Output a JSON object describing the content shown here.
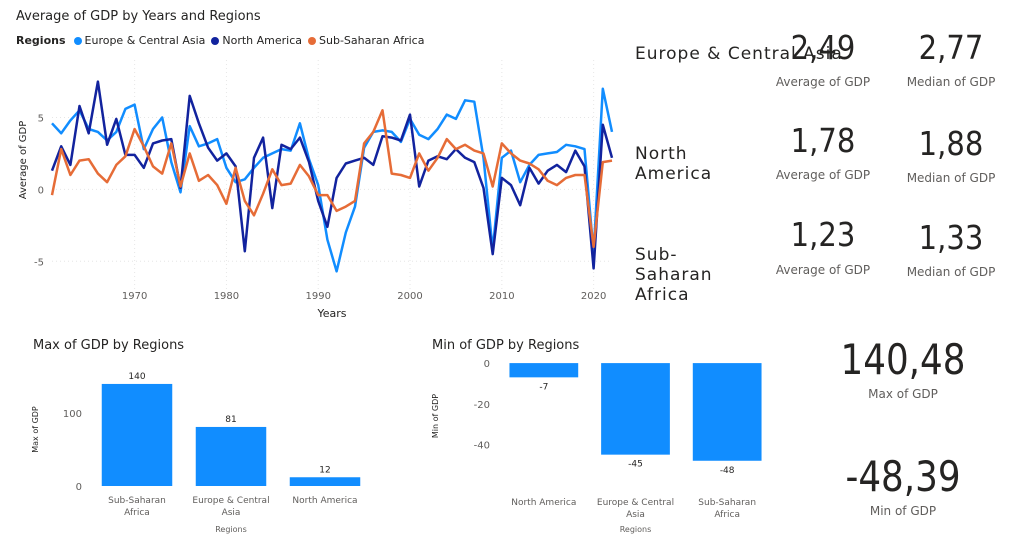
{
  "line_chart": {
    "title": "Average of GDP by Years and Regions",
    "legend_title": "Regions",
    "xlabel": "Years",
    "ylabel": "Average of GDP"
  },
  "kpis": [
    {
      "region": "Europe & Central Asia",
      "average": "2,49",
      "median": "2,77",
      "average_label": "Average of GDP",
      "median_label": "Median of GDP"
    },
    {
      "region": "North America",
      "average": "1,78",
      "median": "1,88",
      "average_label": "Average of GDP",
      "median_label": "Median of GDP"
    },
    {
      "region": "Sub-Saharan Africa",
      "average": "1,23",
      "median": "1,33",
      "average_label": "Average of GDP",
      "median_label": "Median of GDP"
    }
  ],
  "max_chart": {
    "title": "Max of GDP by Regions",
    "xlabel": "Regions",
    "ylabel": "Max of GDP"
  },
  "min_chart": {
    "title": "Min of GDP by Regions",
    "xlabel": "Regions",
    "ylabel": "Min of GDP"
  },
  "max_card": {
    "value": "140,48",
    "label": "Max of GDP"
  },
  "min_card": {
    "value": "-48,39",
    "label": "Min of GDP"
  },
  "chart_data": [
    {
      "type": "line",
      "title": "Average of GDP by Years and Regions",
      "xlabel": "Years",
      "ylabel": "Average of GDP",
      "xlim": [
        1961,
        2022
      ],
      "ylim": [
        -7,
        9
      ],
      "x_ticks": [
        1970,
        1980,
        1990,
        2000,
        2010,
        2020
      ],
      "y_ticks": [
        -5,
        0,
        5
      ],
      "grid": true,
      "legend_position": "top-left",
      "x": [
        1961,
        1962,
        1963,
        1964,
        1965,
        1966,
        1967,
        1968,
        1969,
        1970,
        1971,
        1972,
        1973,
        1974,
        1975,
        1976,
        1977,
        1978,
        1979,
        1980,
        1981,
        1982,
        1983,
        1984,
        1985,
        1986,
        1987,
        1988,
        1989,
        1990,
        1991,
        1992,
        1993,
        1994,
        1995,
        1996,
        1997,
        1998,
        1999,
        2000,
        2001,
        2002,
        2003,
        2004,
        2005,
        2006,
        2007,
        2008,
        2009,
        2010,
        2011,
        2012,
        2013,
        2014,
        2015,
        2016,
        2017,
        2018,
        2019,
        2020,
        2021,
        2022
      ],
      "series": [
        {
          "name": "Europe & Central Asia",
          "color": "#118DFF",
          "values": [
            4.6,
            3.9,
            4.8,
            5.5,
            4.2,
            4.0,
            3.4,
            4.0,
            5.6,
            5.9,
            2.8,
            4.2,
            5.0,
            1.9,
            -0.2,
            4.4,
            3.0,
            3.2,
            3.5,
            1.5,
            0.5,
            0.7,
            1.5,
            2.2,
            2.5,
            2.8,
            2.7,
            4.6,
            2.1,
            0.3,
            -3.5,
            -5.7,
            -3.0,
            -1.2,
            2.9,
            4.0,
            4.1,
            4.0,
            3.3,
            4.9,
            3.8,
            3.5,
            4.2,
            5.2,
            4.9,
            6.2,
            6.1,
            2.2,
            -4.2,
            2.2,
            2.7,
            0.5,
            1.7,
            2.4,
            2.5,
            2.6,
            3.1,
            3.0,
            2.8,
            -4.4,
            7.0,
            4.0
          ]
        },
        {
          "name": "North America",
          "color": "#12239E",
          "values": [
            1.3,
            3.0,
            1.7,
            5.8,
            3.9,
            7.5,
            3.1,
            4.9,
            2.4,
            2.4,
            1.5,
            3.2,
            3.4,
            3.5,
            0.1,
            6.5,
            4.6,
            2.9,
            2.0,
            2.5,
            1.6,
            -4.3,
            2.2,
            3.6,
            -1.3,
            3.1,
            2.8,
            3.6,
            1.9,
            -0.8,
            -2.6,
            0.8,
            1.8,
            2.0,
            2.2,
            1.7,
            3.7,
            3.6,
            3.4,
            5.2,
            0.2,
            2.0,
            2.3,
            2.1,
            2.8,
            2.2,
            1.9,
            0.1,
            -4.5,
            0.8,
            0.3,
            -1.1,
            1.5,
            0.4,
            1.3,
            1.7,
            1.2,
            2.7,
            1.6,
            -5.5,
            4.5,
            2.2
          ]
        },
        {
          "name": "Sub-Saharan Africa",
          "color": "#E66C37",
          "values": [
            -0.4,
            2.8,
            1.0,
            2.0,
            2.1,
            1.1,
            0.5,
            1.7,
            2.3,
            4.2,
            3.0,
            1.6,
            1.1,
            3.2,
            0.2,
            2.5,
            0.6,
            1.0,
            0.3,
            -1.0,
            1.5,
            -0.8,
            -1.8,
            -0.3,
            1.4,
            0.3,
            0.4,
            1.7,
            0.9,
            -0.4,
            -0.4,
            -1.5,
            -1.2,
            -0.8,
            3.2,
            4.0,
            5.5,
            1.1,
            1.0,
            0.8,
            2.5,
            1.3,
            2.2,
            3.5,
            2.8,
            3.1,
            2.7,
            2.5,
            0.2,
            3.2,
            2.5,
            2.0,
            1.8,
            1.4,
            0.6,
            0.3,
            0.8,
            1.0,
            1.0,
            -4.0,
            1.9,
            2.0
          ]
        }
      ]
    },
    {
      "type": "bar",
      "title": "Max of GDP by Regions",
      "xlabel": "Regions",
      "ylabel": "Max of GDP",
      "categories": [
        "Sub-Saharan Africa",
        "Europe & Central Asia",
        "North America"
      ],
      "values": [
        140,
        81,
        12
      ],
      "data_labels": [
        "140",
        "81",
        "12"
      ],
      "ylim": [
        0,
        155
      ],
      "y_ticks": [
        0,
        100
      ],
      "color": "#118DFF"
    },
    {
      "type": "bar",
      "title": "Min of GDP by Regions",
      "xlabel": "Regions",
      "ylabel": "Min of GDP",
      "categories": [
        "North America",
        "Europe & Central Asia",
        "Sub-Saharan Africa"
      ],
      "values": [
        -7,
        -45,
        -48
      ],
      "data_labels": [
        "-7",
        "-45",
        "-48"
      ],
      "ylim": [
        -55,
        3
      ],
      "y_ticks": [
        0,
        -20,
        -40
      ],
      "color": "#118DFF"
    }
  ]
}
